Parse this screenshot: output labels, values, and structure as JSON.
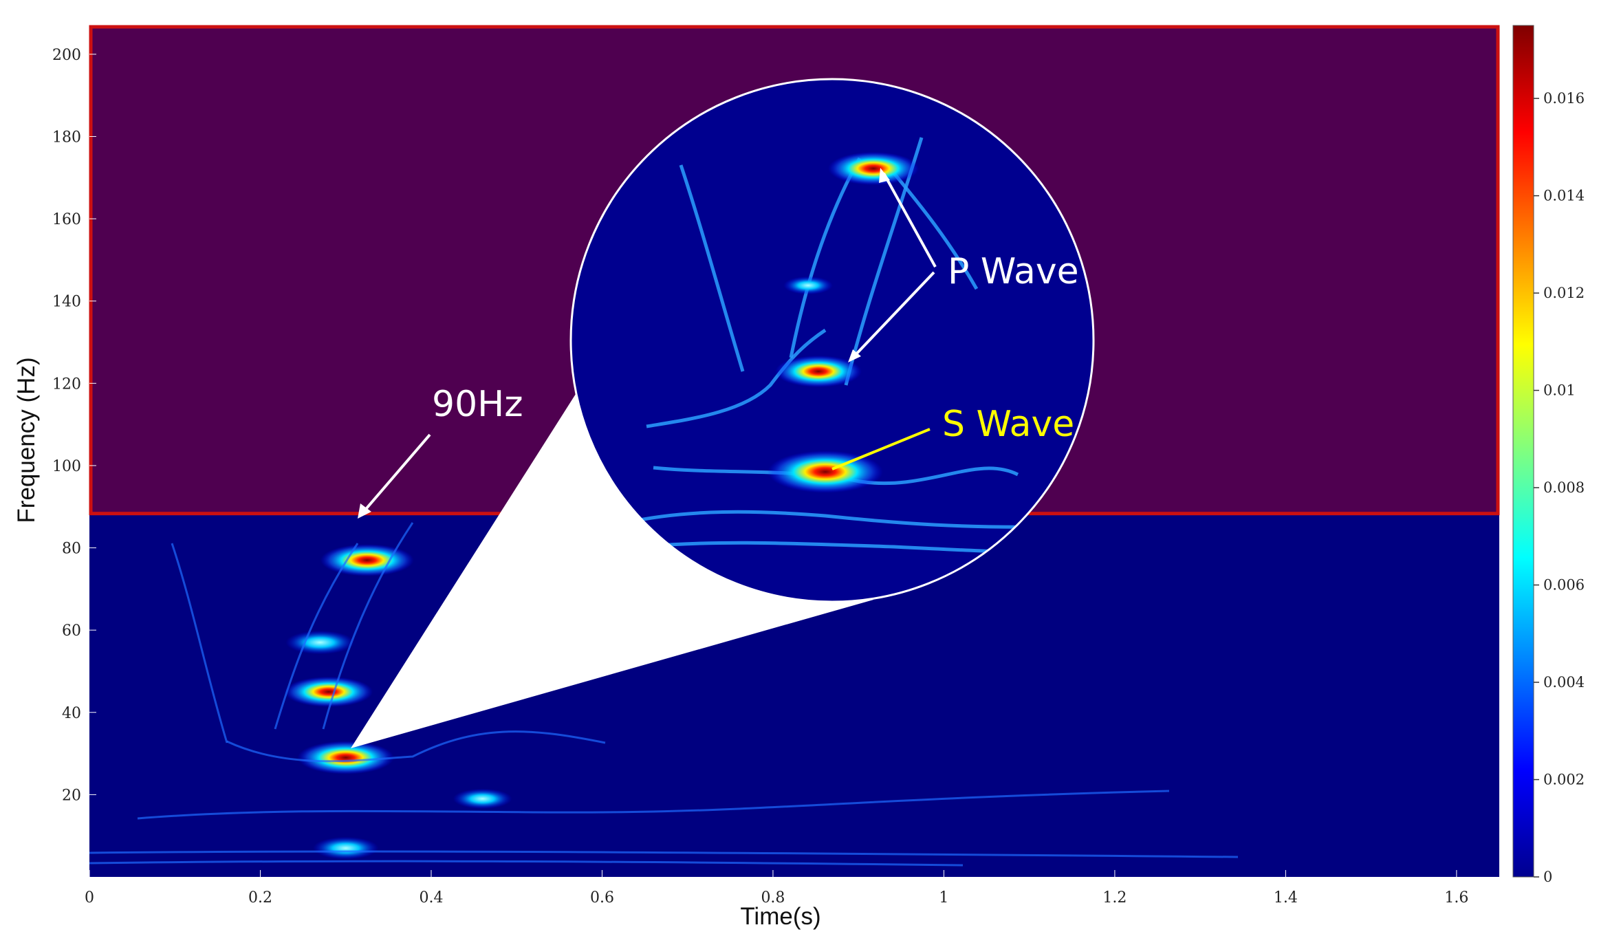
{
  "chart_data": {
    "type": "heatmap",
    "title": "",
    "xlabel": "Time(s)",
    "ylabel": "Frequency (Hz)",
    "xlim": [
      0,
      1.65
    ],
    "ylim": [
      0,
      207
    ],
    "x_ticks": [
      "0",
      "0.2",
      "0.4",
      "0.6",
      "0.8",
      "1",
      "1.2",
      "1.4",
      "1.6"
    ],
    "x_tick_values": [
      0,
      0.2,
      0.4,
      0.6,
      0.8,
      1.0,
      1.2,
      1.4,
      1.6
    ],
    "y_ticks": [
      "20",
      "40",
      "60",
      "80",
      "100",
      "120",
      "140",
      "160",
      "180",
      "200"
    ],
    "y_tick_values": [
      20,
      40,
      60,
      80,
      100,
      120,
      140,
      160,
      180,
      200
    ],
    "colorbar": {
      "colormap": "jet",
      "range": [
        0,
        0.0175
      ],
      "ticks": [
        "0",
        "0.002",
        "0.004",
        "0.006",
        "0.008",
        "0.01",
        "0.012",
        "0.014",
        "0.016"
      ],
      "tick_values": [
        0,
        0.002,
        0.004,
        0.006,
        0.008,
        0.01,
        0.012,
        0.014,
        0.016
      ]
    },
    "background_color": "#000080",
    "highlight_region": {
      "freq_min": 88,
      "freq_max": 207,
      "fill_color": "#4f0050",
      "border_color": "#cc1111"
    },
    "energy_features": [
      {
        "t": 0.3,
        "f": 29,
        "amplitude": 0.0175
      },
      {
        "t": 0.325,
        "f": 77,
        "amplitude": 0.0165
      },
      {
        "t": 0.28,
        "f": 45,
        "amplitude": 0.015
      },
      {
        "t": 0.27,
        "f": 57,
        "amplitude": 0.009
      },
      {
        "t": 0.46,
        "f": 19,
        "amplitude": 0.006
      },
      {
        "t": 0.3,
        "f": 7,
        "amplitude": 0.008
      }
    ],
    "annotations": [
      {
        "text": "90Hz",
        "color": "#ffffff",
        "t": 0.31,
        "f": 88
      },
      {
        "text": "P Wave",
        "color": "#ffffff"
      },
      {
        "text": "S Wave",
        "color": "#ffff00"
      }
    ]
  }
}
